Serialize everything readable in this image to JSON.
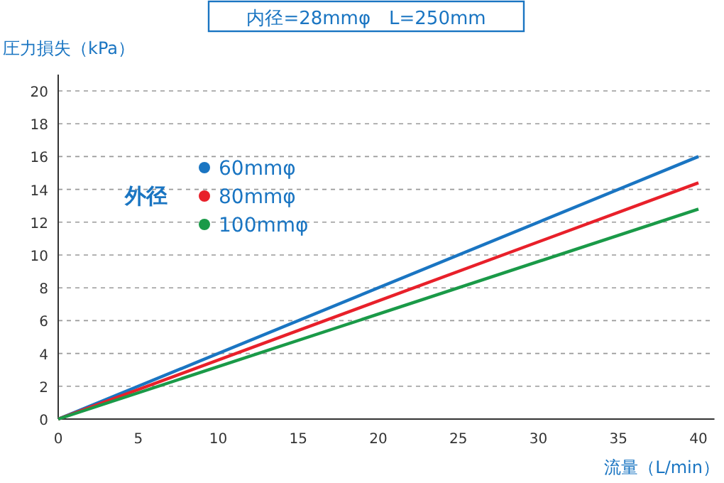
{
  "chart_data": {
    "type": "line",
    "title": "内径=28mmφ　L=250mm",
    "xlabel": "流量（L/min）",
    "ylabel": "圧力損失（kPa）",
    "legend_title": "外径",
    "x": [
      0,
      40
    ],
    "series": [
      {
        "name": "60mmφ",
        "color": "#1a75c2",
        "values": [
          0,
          16
        ]
      },
      {
        "name": "80mmφ",
        "color": "#e8202a",
        "values": [
          0,
          14.4
        ]
      },
      {
        "name": "100mmφ",
        "color": "#1a9a48",
        "values": [
          0,
          12.8
        ]
      }
    ],
    "xlim": [
      0,
      41
    ],
    "xticks": [
      0,
      5,
      10,
      15,
      20,
      25,
      30,
      35,
      40
    ],
    "ylim": [
      0,
      21
    ],
    "yticks": [
      0,
      2,
      4,
      6,
      8,
      10,
      12,
      14,
      16,
      18,
      20
    ],
    "grid": "y",
    "legend": "top left",
    "line_style": "solid",
    "marker": "none"
  }
}
